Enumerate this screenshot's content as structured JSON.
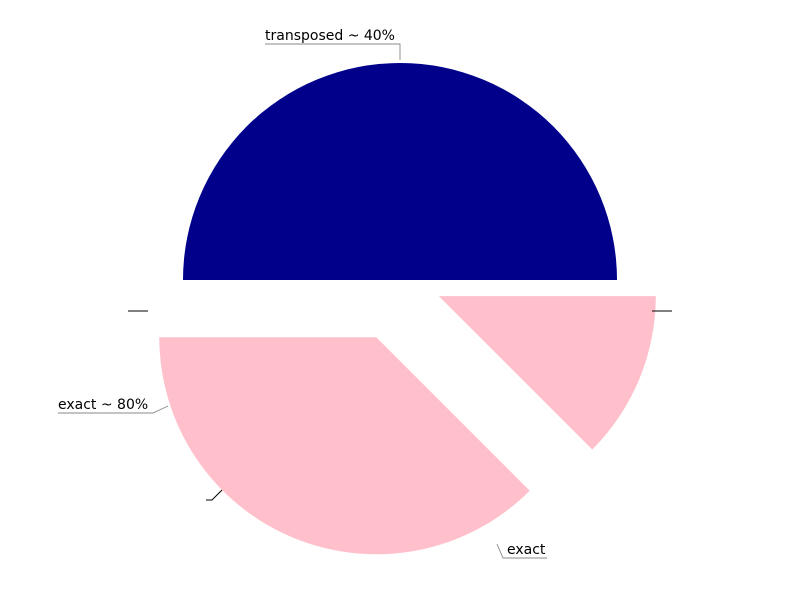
{
  "chart_data": {
    "type": "pie",
    "slices": [
      {
        "label": "transposed ~ 40%",
        "value": 50,
        "color": "#00008b"
      },
      {
        "label": "exact ~ 80%",
        "value": 12.5,
        "color": "#ffc0cb"
      },
      {
        "label": "",
        "value": 0,
        "color": "#ffc0cb"
      },
      {
        "label": "exact",
        "value": 37.5,
        "color": "#ffc0cb"
      }
    ]
  }
}
